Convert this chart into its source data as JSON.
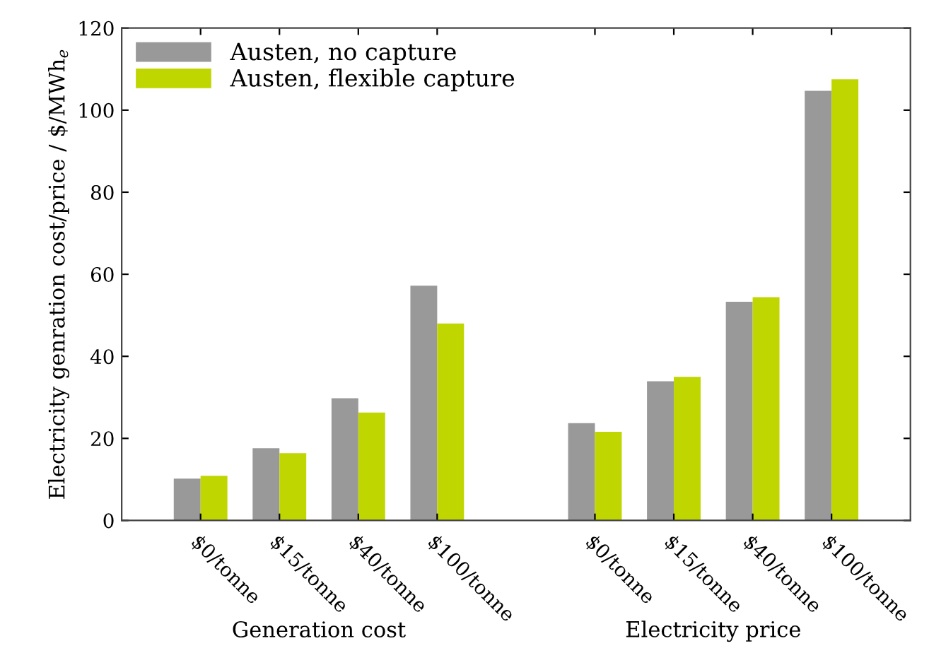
{
  "chart_data": {
    "type": "bar",
    "ylabel": "Electricity genration cost/price / $/MWh$_{e}$",
    "categories": [
      "$0/tonne",
      "$15/tonne",
      "$40/tonne",
      "$100/tonne",
      null,
      "$0/tonne",
      "$15/tonne",
      "$40/tonne",
      "$100/tonne"
    ],
    "series": [
      {
        "name": "Austen, no capture",
        "color": "#999999",
        "values": [
          10.2,
          17.6,
          29.8,
          57.2,
          null,
          23.7,
          33.9,
          53.3,
          104.7
        ]
      },
      {
        "name": "Austen, flexible capture",
        "color": "#bfd600",
        "values": [
          10.9,
          16.4,
          26.3,
          48.0,
          null,
          21.6,
          35.0,
          54.4,
          107.5
        ]
      }
    ],
    "annotations": [
      "Generation cost",
      "Electricity price"
    ],
    "ylim": [
      0,
      120
    ],
    "yticks": [
      0,
      20,
      40,
      60,
      80,
      100,
      120
    ],
    "grid": false,
    "legend": "top left"
  }
}
